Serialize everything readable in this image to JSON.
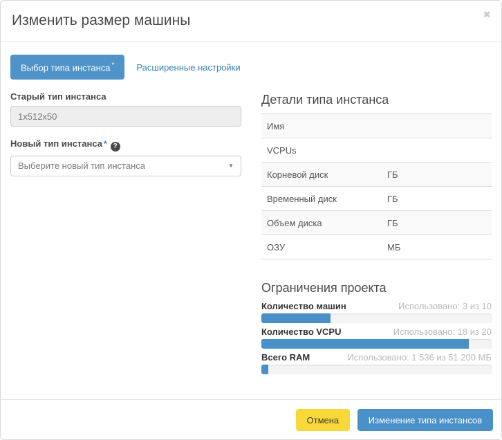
{
  "dialog": {
    "title": "Изменить размер машины"
  },
  "icons": {
    "close": "✖",
    "help": "?",
    "caret": "▼"
  },
  "tabs": [
    {
      "label": "Выбор типа инстанса",
      "required_mark": "*",
      "active": true
    },
    {
      "label": "Расширенные настройки",
      "active": false
    }
  ],
  "form": {
    "old_type": {
      "label": "Старый тип инстанса",
      "value": "1x512x50"
    },
    "new_type": {
      "label": "Новый тип инстанса",
      "required_mark": "*",
      "placeholder": "Выберите новый тип инстанса"
    }
  },
  "details": {
    "heading": "Детали типа инстанса",
    "rows": [
      {
        "label": "Имя",
        "unit": ""
      },
      {
        "label": "VCPUs",
        "unit": ""
      },
      {
        "label": "Корневой диск",
        "unit": "ГБ"
      },
      {
        "label": "Временный диск",
        "unit": "ГБ"
      },
      {
        "label": "Объем диска",
        "unit": "ГБ"
      },
      {
        "label": "ОЗУ",
        "unit": "МБ"
      }
    ]
  },
  "limits": {
    "heading": "Ограничения проекта",
    "bars": [
      {
        "label": "Количество машин",
        "usage": "Использовано: 3 из 10",
        "percent": 30
      },
      {
        "label": "Количество VCPU",
        "usage": "Использовано: 18 из 20",
        "percent": 90
      },
      {
        "label": "Всего RAM",
        "usage": "Использовано: 1 536 из 51 200 МБ",
        "percent": 3
      }
    ]
  },
  "footer": {
    "cancel_label": "Отмена",
    "submit_label": "Изменение типа инстансов"
  },
  "colors": {
    "accent_blue": "#4f93c8",
    "link_blue": "#3382b4",
    "progress_fill": "#4a90c8",
    "cancel_yellow": "#f9d83a",
    "row_stripe": "#f9f9f9"
  }
}
